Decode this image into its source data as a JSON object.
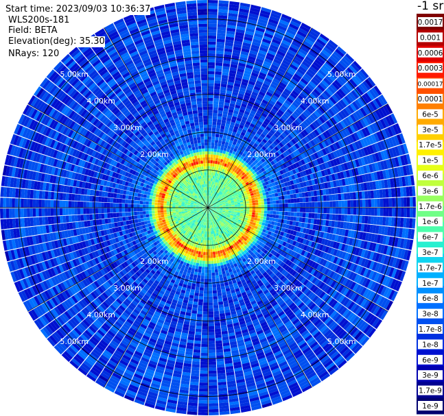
{
  "info": {
    "start_time": "Start time: 2023/09/03 10:36:37",
    "device": "WLS200s-181",
    "field": "Field: BETA",
    "elevation": "Elevation(deg): 35.30",
    "nrays": "NRays: 120"
  },
  "chart_data": {
    "type": "heatmap",
    "projection": "polar-ppi",
    "field": "BETA",
    "nrays": 120,
    "range_rings_km": [
      1,
      2,
      3,
      4,
      5
    ],
    "range_ring_labels": [
      "2.00km",
      "3.00km",
      "4.00km",
      "5.00km"
    ],
    "max_range_km": 5.5,
    "grid": true,
    "colorbar": {
      "title": "-1 sr",
      "placement": "right",
      "scale": "log",
      "range": [
        1e-09,
        0.0017
      ],
      "ticks": [
        "0.0017",
        "0.001",
        "0.0006",
        "0.0003",
        "0.00017",
        "0.0001",
        "6e-5",
        "3e-5",
        "1.7e-5",
        "1e-5",
        "6e-6",
        "3e-6",
        "1.7e-6",
        "1e-6",
        "6e-7",
        "3e-7",
        "1.7e-7",
        "1e-7",
        "6e-8",
        "3e-8",
        "1.7e-8",
        "1e-8",
        "6e-9",
        "3e-9",
        "1.7e-9",
        "1e-9"
      ],
      "colors": [
        "#800000",
        "#b40000",
        "#e10000",
        "#ff1a00",
        "#ff5000",
        "#ff7f00",
        "#ffaa00",
        "#ffd000",
        "#fff000",
        "#e6ff18",
        "#c0ff3c",
        "#98ff60",
        "#70ff86",
        "#4cffac",
        "#28f0d0",
        "#10d4f0",
        "#00b0ff",
        "#0090ff",
        "#0070ff",
        "#0050f0",
        "#0030e0",
        "#0010d0",
        "#0000b0",
        "#000090",
        "#000070"
      ]
    },
    "profile": {
      "range_km": [
        0.0,
        0.9,
        1.1,
        1.2,
        1.35,
        1.6,
        2.2,
        3.0,
        4.0,
        5.0,
        5.5
      ],
      "beta_sr": [
        8e-07,
        1e-06,
        3e-06,
        0.00015,
        3e-05,
        3e-08,
        1.5e-08,
        1.2e-08,
        1.5e-08,
        1.3e-08,
        1.1e-08
      ]
    }
  }
}
